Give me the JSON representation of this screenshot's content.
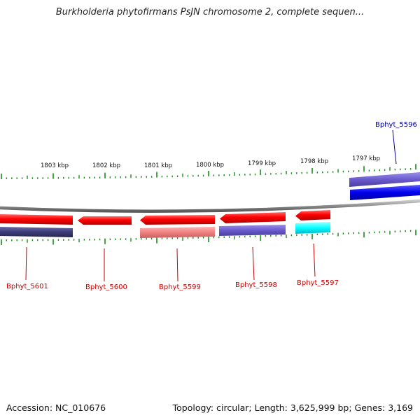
{
  "title": "Burkholderia phytofirmans PsJN chromosome 2, complete sequen...",
  "footer": {
    "accession": "Accession: NC_010676",
    "topology": "Topology: circular; Length: 3,625,999 bp; Genes: 3,169"
  },
  "colors": {
    "backbone": "#8a8a8a",
    "tick": "#1a8a1a",
    "forward_red": "#ff0000",
    "reverse_red": "#ff0000",
    "pale_red": "#f08080",
    "slate_blue": "#6a5acd",
    "dark_slate": "#3b3b78",
    "blue": "#0000ee",
    "cyan": "#00ffff",
    "label_red": "#cc0000",
    "label_blue": "#000099"
  },
  "scale_labels": [
    "1803 kbp",
    "1802 kbp",
    "1801 kbp",
    "1800 kbp",
    "1799 kbp",
    "1798 kbp",
    "1797 kbp"
  ],
  "genes": [
    {
      "name": "Bphyt_5601",
      "color": "label_red"
    },
    {
      "name": "Bphyt_5600",
      "color": "label_red"
    },
    {
      "name": "Bphyt_5599",
      "color": "label_red"
    },
    {
      "name": "Bphyt_5598",
      "color": "label_red"
    },
    {
      "name": "Bphyt_5597",
      "color": "label_red"
    },
    {
      "name": "Bphyt_5596",
      "color": "label_blue"
    }
  ]
}
